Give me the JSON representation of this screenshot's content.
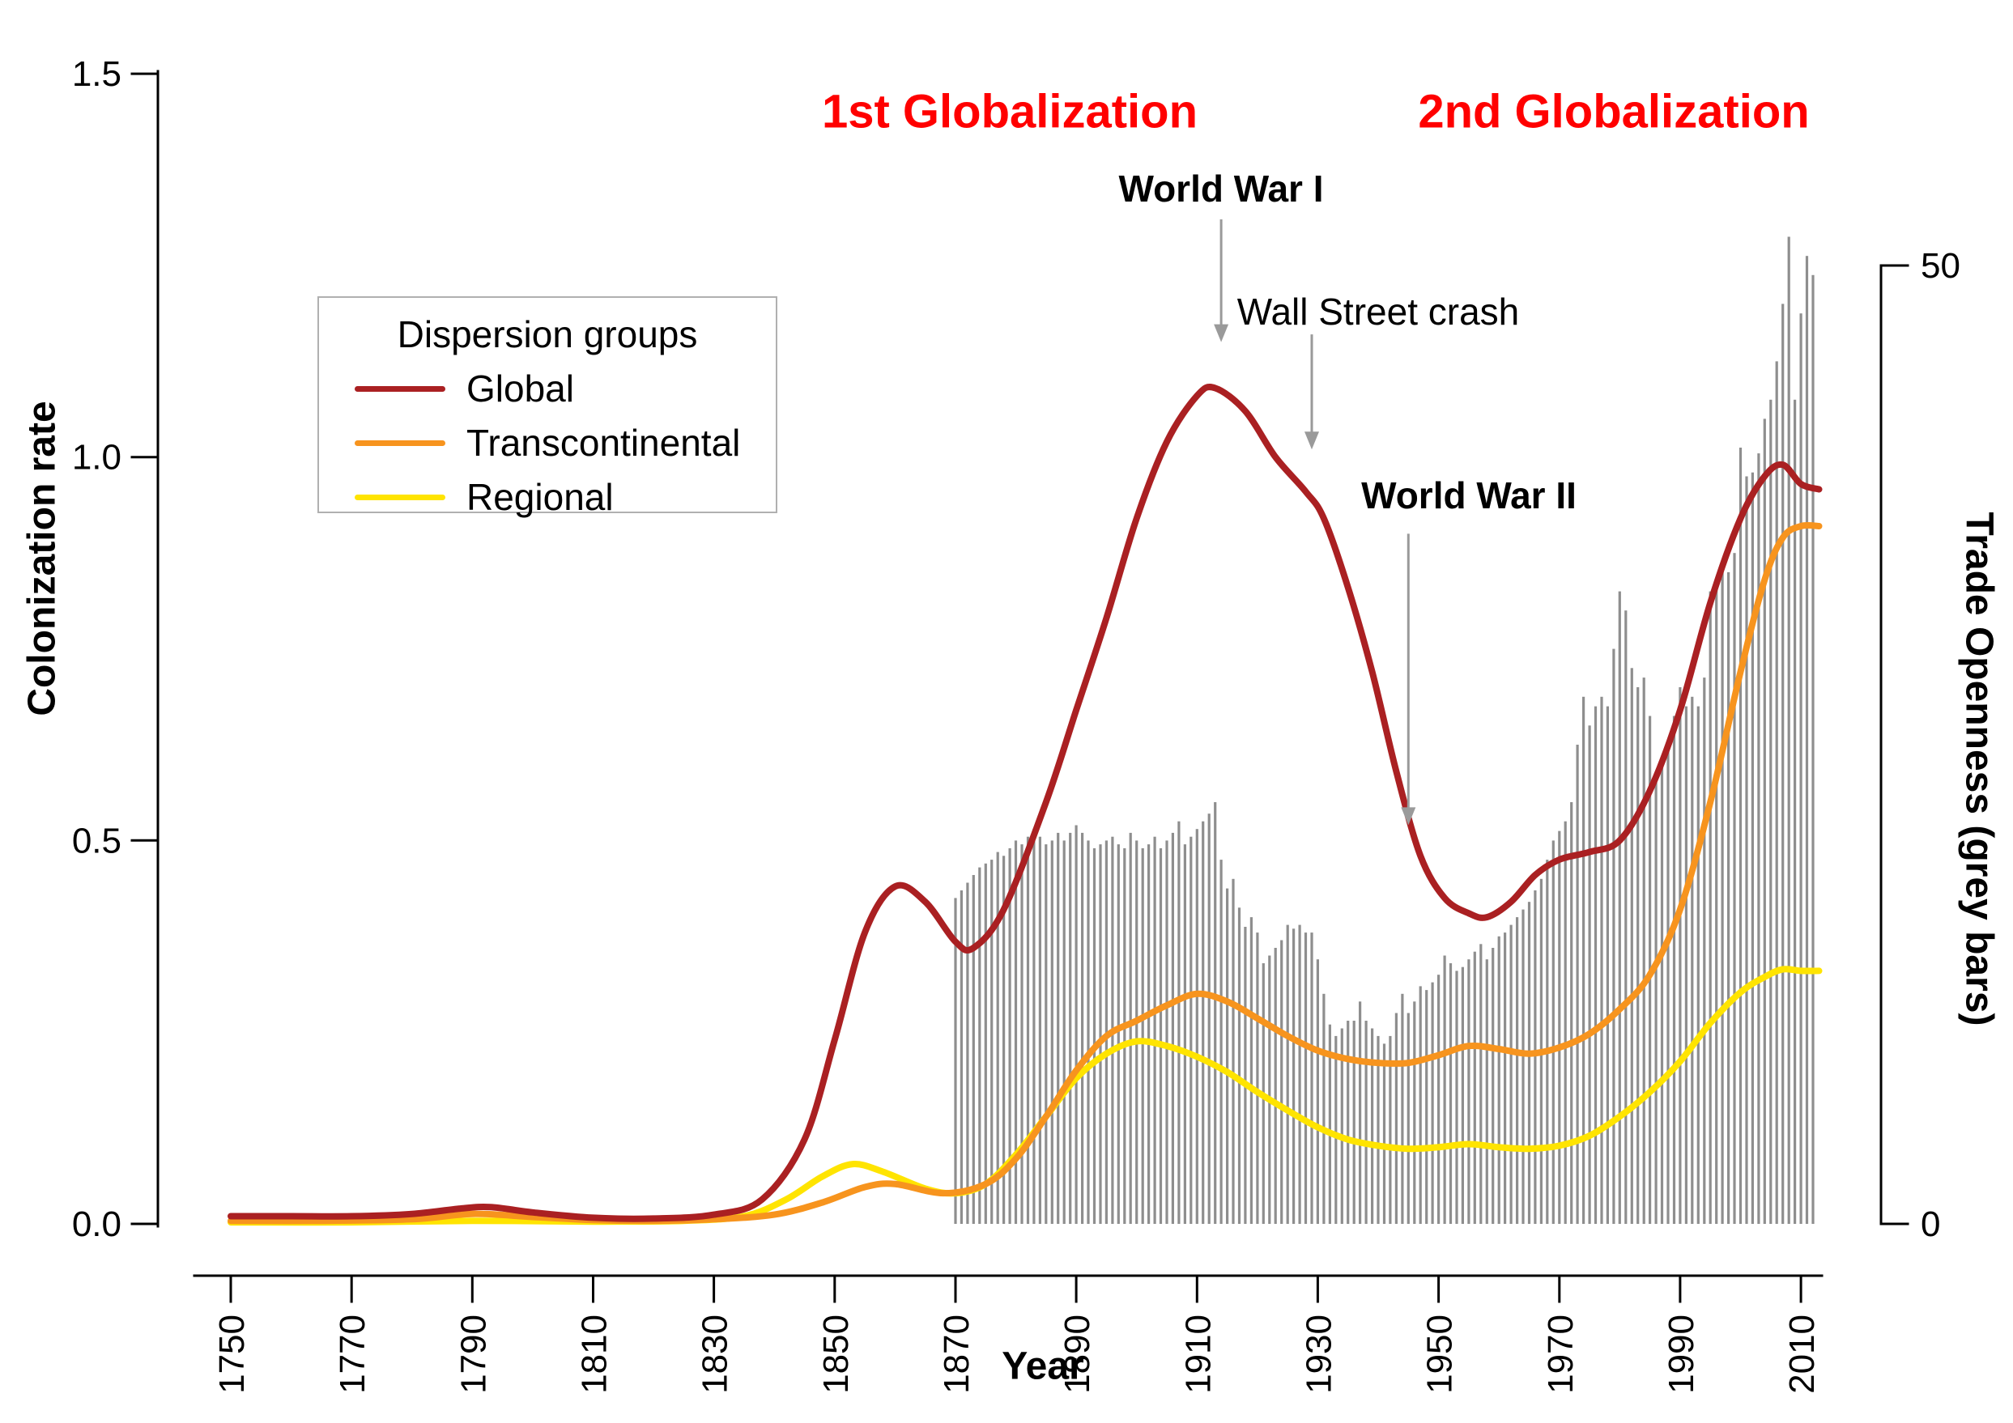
{
  "background": "#ffffff",
  "chart_data": {
    "type": "mixed",
    "title": "",
    "x_range": [
      1750,
      2013
    ],
    "x_axis": {
      "label": "Year",
      "ticks": [
        "1750",
        "1770",
        "1790",
        "1810",
        "1830",
        "1850",
        "1870",
        "1890",
        "1910",
        "1930",
        "1950",
        "1970",
        "1990",
        "2010"
      ],
      "tick_years": [
        1750,
        1770,
        1790,
        1810,
        1830,
        1850,
        1870,
        1890,
        1910,
        1930,
        1950,
        1970,
        1990,
        2010
      ]
    },
    "left_axis": {
      "label": "Colonization rate",
      "range": [
        0,
        1.5
      ],
      "ticks": [
        "0.0",
        "0.5",
        "1.0",
        "1.5"
      ],
      "tick_values": [
        0,
        0.5,
        1.0,
        1.5
      ]
    },
    "right_axis": {
      "label": "Trade Openness (grey bars)",
      "range": [
        0,
        50
      ],
      "ticks": [
        "0",
        "50"
      ],
      "tick_values": [
        0,
        50
      ]
    },
    "legend": {
      "title": "Dispersion groups"
    },
    "line_series": [
      {
        "name": "Global",
        "color": "#aa2022",
        "points": [
          [
            1750,
            0.01
          ],
          [
            1760,
            0.01
          ],
          [
            1770,
            0.01
          ],
          [
            1780,
            0.013
          ],
          [
            1788,
            0.02
          ],
          [
            1793,
            0.022
          ],
          [
            1800,
            0.015
          ],
          [
            1810,
            0.008
          ],
          [
            1820,
            0.007
          ],
          [
            1830,
            0.012
          ],
          [
            1838,
            0.032
          ],
          [
            1845,
            0.11
          ],
          [
            1850,
            0.24
          ],
          [
            1855,
            0.38
          ],
          [
            1860,
            0.44
          ],
          [
            1865,
            0.42
          ],
          [
            1870,
            0.368
          ],
          [
            1873,
            0.36
          ],
          [
            1878,
            0.41
          ],
          [
            1885,
            0.55
          ],
          [
            1890,
            0.67
          ],
          [
            1895,
            0.79
          ],
          [
            1900,
            0.92
          ],
          [
            1905,
            1.02
          ],
          [
            1910,
            1.08
          ],
          [
            1913,
            1.09
          ],
          [
            1918,
            1.06
          ],
          [
            1923,
            1.0
          ],
          [
            1928,
            0.955
          ],
          [
            1931,
            0.92
          ],
          [
            1935,
            0.83
          ],
          [
            1939,
            0.72
          ],
          [
            1943,
            0.59
          ],
          [
            1947,
            0.48
          ],
          [
            1951,
            0.425
          ],
          [
            1955,
            0.405
          ],
          [
            1958,
            0.4
          ],
          [
            1962,
            0.42
          ],
          [
            1966,
            0.455
          ],
          [
            1970,
            0.475
          ],
          [
            1975,
            0.485
          ],
          [
            1980,
            0.5
          ],
          [
            1985,
            0.565
          ],
          [
            1990,
            0.67
          ],
          [
            1995,
            0.81
          ],
          [
            2000,
            0.92
          ],
          [
            2004,
            0.975
          ],
          [
            2007,
            0.99
          ],
          [
            2010,
            0.965
          ],
          [
            2013,
            0.958
          ]
        ]
      },
      {
        "name": "Transcontinental",
        "color": "#f7941e",
        "points": [
          [
            1750,
            0.004
          ],
          [
            1765,
            0.004
          ],
          [
            1780,
            0.006
          ],
          [
            1790,
            0.013
          ],
          [
            1800,
            0.009
          ],
          [
            1810,
            0.005
          ],
          [
            1820,
            0.004
          ],
          [
            1830,
            0.006
          ],
          [
            1840,
            0.012
          ],
          [
            1848,
            0.028
          ],
          [
            1855,
            0.048
          ],
          [
            1860,
            0.052
          ],
          [
            1868,
            0.04
          ],
          [
            1875,
            0.052
          ],
          [
            1880,
            0.085
          ],
          [
            1885,
            0.14
          ],
          [
            1890,
            0.2
          ],
          [
            1895,
            0.245
          ],
          [
            1900,
            0.265
          ],
          [
            1905,
            0.285
          ],
          [
            1910,
            0.3
          ],
          [
            1915,
            0.29
          ],
          [
            1920,
            0.268
          ],
          [
            1925,
            0.245
          ],
          [
            1930,
            0.226
          ],
          [
            1935,
            0.215
          ],
          [
            1940,
            0.21
          ],
          [
            1945,
            0.21
          ],
          [
            1950,
            0.22
          ],
          [
            1955,
            0.232
          ],
          [
            1960,
            0.228
          ],
          [
            1965,
            0.222
          ],
          [
            1970,
            0.23
          ],
          [
            1975,
            0.248
          ],
          [
            1980,
            0.28
          ],
          [
            1985,
            0.325
          ],
          [
            1990,
            0.41
          ],
          [
            1995,
            0.55
          ],
          [
            2000,
            0.72
          ],
          [
            2004,
            0.84
          ],
          [
            2007,
            0.895
          ],
          [
            2010,
            0.91
          ],
          [
            2013,
            0.91
          ]
        ]
      },
      {
        "name": "Regional",
        "color": "#ffe400",
        "points": [
          [
            1750,
            0.002
          ],
          [
            1770,
            0.002
          ],
          [
            1790,
            0.004
          ],
          [
            1810,
            0.003
          ],
          [
            1825,
            0.004
          ],
          [
            1835,
            0.01
          ],
          [
            1842,
            0.032
          ],
          [
            1848,
            0.062
          ],
          [
            1853,
            0.078
          ],
          [
            1858,
            0.068
          ],
          [
            1865,
            0.046
          ],
          [
            1870,
            0.04
          ],
          [
            1875,
            0.052
          ],
          [
            1880,
            0.09
          ],
          [
            1885,
            0.14
          ],
          [
            1890,
            0.19
          ],
          [
            1895,
            0.222
          ],
          [
            1900,
            0.238
          ],
          [
            1905,
            0.232
          ],
          [
            1910,
            0.218
          ],
          [
            1915,
            0.198
          ],
          [
            1920,
            0.172
          ],
          [
            1925,
            0.148
          ],
          [
            1930,
            0.126
          ],
          [
            1935,
            0.11
          ],
          [
            1940,
            0.102
          ],
          [
            1945,
            0.098
          ],
          [
            1950,
            0.1
          ],
          [
            1955,
            0.104
          ],
          [
            1960,
            0.1
          ],
          [
            1965,
            0.098
          ],
          [
            1970,
            0.102
          ],
          [
            1975,
            0.115
          ],
          [
            1980,
            0.14
          ],
          [
            1985,
            0.172
          ],
          [
            1990,
            0.212
          ],
          [
            1995,
            0.262
          ],
          [
            2000,
            0.302
          ],
          [
            2004,
            0.322
          ],
          [
            2007,
            0.332
          ],
          [
            2010,
            0.33
          ],
          [
            2013,
            0.33
          ]
        ]
      }
    ],
    "bars": {
      "name": "Trade Openness",
      "color": "#8e8e8e",
      "axis": "right",
      "start_year": 1870,
      "values": [
        17.0,
        17.4,
        17.8,
        18.2,
        18.6,
        18.8,
        19.0,
        19.4,
        19.2,
        19.6,
        20.0,
        19.8,
        20.2,
        20.6,
        20.2,
        19.8,
        20.0,
        20.4,
        20.0,
        20.4,
        20.8,
        20.4,
        20.0,
        19.6,
        19.8,
        20.0,
        20.2,
        19.8,
        19.6,
        20.4,
        20.0,
        19.6,
        19.8,
        20.2,
        19.6,
        20.0,
        20.4,
        21.0,
        19.8,
        20.2,
        20.6,
        21.0,
        21.4,
        22.0,
        19.0,
        17.5,
        18.0,
        16.5,
        15.5,
        16.0,
        15.2,
        13.6,
        14.0,
        14.4,
        14.8,
        15.6,
        15.4,
        15.6,
        15.2,
        15.2,
        13.8,
        12.0,
        10.4,
        9.8,
        10.2,
        10.6,
        10.6,
        11.6,
        10.6,
        10.2,
        9.8,
        9.4,
        9.8,
        11.0,
        12.0,
        11.0,
        11.6,
        12.4,
        12.2,
        12.6,
        13.0,
        14.0,
        13.6,
        13.2,
        13.4,
        13.8,
        14.2,
        14.6,
        13.8,
        14.4,
        15.0,
        15.2,
        15.6,
        16.0,
        16.4,
        16.8,
        17.4,
        18.0,
        19.0,
        20.0,
        20.5,
        21.0,
        22.0,
        25.0,
        27.5,
        26.0,
        27.0,
        27.5,
        27.0,
        30.0,
        33.0,
        32.0,
        29.0,
        28.0,
        28.5,
        26.5,
        23.5,
        24.0,
        25.0,
        26.5,
        28.0,
        27.0,
        27.5,
        27.0,
        28.5,
        33.0,
        33.5,
        34.5,
        34.0,
        35.0,
        40.5,
        39.0,
        39.2,
        40.2,
        42.0,
        43.0,
        45.0,
        48.0,
        51.5,
        43.0,
        47.5,
        50.5,
        49.5
      ]
    },
    "annotations": [
      {
        "id": "globalization-1",
        "text": "1st Globalization",
        "color": "#ff0000",
        "bold": true,
        "year": 1879,
        "value": 1.45
      },
      {
        "id": "globalization-2",
        "text": "2nd Globalization",
        "color": "#ff0000",
        "bold": true,
        "year": 1979,
        "value": 1.45
      },
      {
        "id": "wwi",
        "text": "World War I",
        "color": "#000000",
        "bold": true,
        "year": 1914,
        "value": 1.35,
        "arrow": {
          "year": 1914,
          "from": 1.31,
          "to": 1.15
        }
      },
      {
        "id": "wall-street",
        "text": "Wall Street crash",
        "color": "#000000",
        "bold": false,
        "year": 1940,
        "value": 1.19,
        "arrow": {
          "year": 1929,
          "from": 1.16,
          "to": 1.01
        }
      },
      {
        "id": "wwii",
        "text": "World War II",
        "color": "#000000",
        "bold": true,
        "year": 1955,
        "value": 0.95,
        "arrow": {
          "year": 1945,
          "from": 0.9,
          "to": 0.52
        }
      }
    ],
    "arrow_color": "#9a9a9a"
  }
}
